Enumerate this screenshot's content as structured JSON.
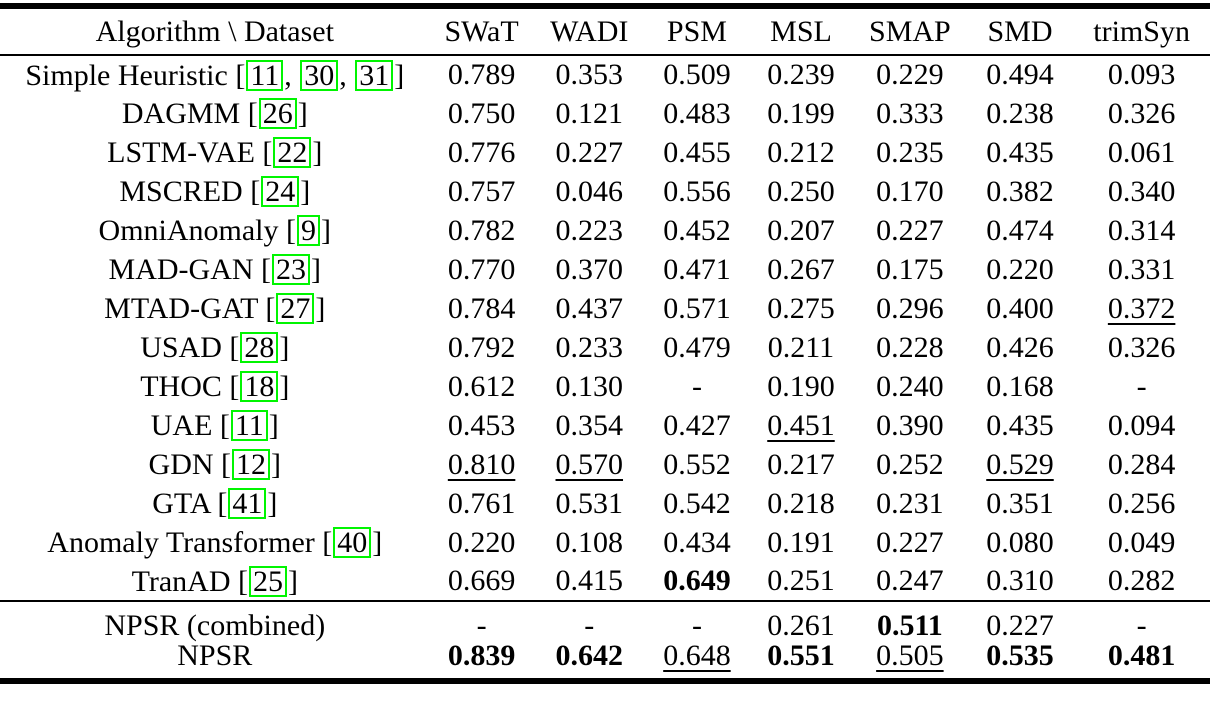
{
  "colors": {
    "citation_box": "#00f500",
    "rule": "#000000",
    "background": "#ffffff",
    "text": "#000000"
  },
  "table": {
    "header": {
      "algorithm_label": "Algorithm \\ Dataset",
      "datasets": [
        "SWaT",
        "WADI",
        "PSM",
        "MSL",
        "SMAP",
        "SMD",
        "trimSyn"
      ]
    },
    "rows": [
      {
        "name": "Simple Heuristic",
        "citations": [
          "11",
          "30",
          "31"
        ],
        "values": [
          {
            "value": "0.789",
            "style": "normal"
          },
          {
            "value": "0.353",
            "style": "normal"
          },
          {
            "value": "0.509",
            "style": "normal"
          },
          {
            "value": "0.239",
            "style": "normal"
          },
          {
            "value": "0.229",
            "style": "normal"
          },
          {
            "value": "0.494",
            "style": "normal"
          },
          {
            "value": "0.093",
            "style": "normal"
          }
        ]
      },
      {
        "name": "DAGMM",
        "citations": [
          "26"
        ],
        "values": [
          {
            "value": "0.750",
            "style": "normal"
          },
          {
            "value": "0.121",
            "style": "normal"
          },
          {
            "value": "0.483",
            "style": "normal"
          },
          {
            "value": "0.199",
            "style": "normal"
          },
          {
            "value": "0.333",
            "style": "normal"
          },
          {
            "value": "0.238",
            "style": "normal"
          },
          {
            "value": "0.326",
            "style": "normal"
          }
        ]
      },
      {
        "name": "LSTM-VAE",
        "citations": [
          "22"
        ],
        "values": [
          {
            "value": "0.776",
            "style": "normal"
          },
          {
            "value": "0.227",
            "style": "normal"
          },
          {
            "value": "0.455",
            "style": "normal"
          },
          {
            "value": "0.212",
            "style": "normal"
          },
          {
            "value": "0.235",
            "style": "normal"
          },
          {
            "value": "0.435",
            "style": "normal"
          },
          {
            "value": "0.061",
            "style": "normal"
          }
        ]
      },
      {
        "name": "MSCRED",
        "citations": [
          "24"
        ],
        "values": [
          {
            "value": "0.757",
            "style": "normal"
          },
          {
            "value": "0.046",
            "style": "normal"
          },
          {
            "value": "0.556",
            "style": "normal"
          },
          {
            "value": "0.250",
            "style": "normal"
          },
          {
            "value": "0.170",
            "style": "normal"
          },
          {
            "value": "0.382",
            "style": "normal"
          },
          {
            "value": "0.340",
            "style": "normal"
          }
        ]
      },
      {
        "name": "OmniAnomaly",
        "citations": [
          "9"
        ],
        "values": [
          {
            "value": "0.782",
            "style": "normal"
          },
          {
            "value": "0.223",
            "style": "normal"
          },
          {
            "value": "0.452",
            "style": "normal"
          },
          {
            "value": "0.207",
            "style": "normal"
          },
          {
            "value": "0.227",
            "style": "normal"
          },
          {
            "value": "0.474",
            "style": "normal"
          },
          {
            "value": "0.314",
            "style": "normal"
          }
        ]
      },
      {
        "name": "MAD-GAN",
        "citations": [
          "23"
        ],
        "values": [
          {
            "value": "0.770",
            "style": "normal"
          },
          {
            "value": "0.370",
            "style": "normal"
          },
          {
            "value": "0.471",
            "style": "normal"
          },
          {
            "value": "0.267",
            "style": "normal"
          },
          {
            "value": "0.175",
            "style": "normal"
          },
          {
            "value": "0.220",
            "style": "normal"
          },
          {
            "value": "0.331",
            "style": "normal"
          }
        ]
      },
      {
        "name": "MTAD-GAT",
        "citations": [
          "27"
        ],
        "values": [
          {
            "value": "0.784",
            "style": "normal"
          },
          {
            "value": "0.437",
            "style": "normal"
          },
          {
            "value": "0.571",
            "style": "normal"
          },
          {
            "value": "0.275",
            "style": "normal"
          },
          {
            "value": "0.296",
            "style": "normal"
          },
          {
            "value": "0.400",
            "style": "normal"
          },
          {
            "value": "0.372",
            "style": "underline"
          }
        ]
      },
      {
        "name": "USAD",
        "citations": [
          "28"
        ],
        "values": [
          {
            "value": "0.792",
            "style": "normal"
          },
          {
            "value": "0.233",
            "style": "normal"
          },
          {
            "value": "0.479",
            "style": "normal"
          },
          {
            "value": "0.211",
            "style": "normal"
          },
          {
            "value": "0.228",
            "style": "normal"
          },
          {
            "value": "0.426",
            "style": "normal"
          },
          {
            "value": "0.326",
            "style": "normal"
          }
        ]
      },
      {
        "name": "THOC",
        "citations": [
          "18"
        ],
        "values": [
          {
            "value": "0.612",
            "style": "normal"
          },
          {
            "value": "0.130",
            "style": "normal"
          },
          {
            "value": "-",
            "style": "normal"
          },
          {
            "value": "0.190",
            "style": "normal"
          },
          {
            "value": "0.240",
            "style": "normal"
          },
          {
            "value": "0.168",
            "style": "normal"
          },
          {
            "value": "-",
            "style": "normal"
          }
        ]
      },
      {
        "name": "UAE",
        "citations": [
          "11"
        ],
        "values": [
          {
            "value": "0.453",
            "style": "normal"
          },
          {
            "value": "0.354",
            "style": "normal"
          },
          {
            "value": "0.427",
            "style": "normal"
          },
          {
            "value": "0.451",
            "style": "underline"
          },
          {
            "value": "0.390",
            "style": "normal"
          },
          {
            "value": "0.435",
            "style": "normal"
          },
          {
            "value": "0.094",
            "style": "normal"
          }
        ]
      },
      {
        "name": "GDN",
        "citations": [
          "12"
        ],
        "values": [
          {
            "value": "0.810",
            "style": "underline"
          },
          {
            "value": "0.570",
            "style": "underline"
          },
          {
            "value": "0.552",
            "style": "normal"
          },
          {
            "value": "0.217",
            "style": "normal"
          },
          {
            "value": "0.252",
            "style": "normal"
          },
          {
            "value": "0.529",
            "style": "underline"
          },
          {
            "value": "0.284",
            "style": "normal"
          }
        ]
      },
      {
        "name": "GTA",
        "citations": [
          "41"
        ],
        "values": [
          {
            "value": "0.761",
            "style": "normal"
          },
          {
            "value": "0.531",
            "style": "normal"
          },
          {
            "value": "0.542",
            "style": "normal"
          },
          {
            "value": "0.218",
            "style": "normal"
          },
          {
            "value": "0.231",
            "style": "normal"
          },
          {
            "value": "0.351",
            "style": "normal"
          },
          {
            "value": "0.256",
            "style": "normal"
          }
        ]
      },
      {
        "name": "Anomaly Transformer",
        "citations": [
          "40"
        ],
        "values": [
          {
            "value": "0.220",
            "style": "normal"
          },
          {
            "value": "0.108",
            "style": "normal"
          },
          {
            "value": "0.434",
            "style": "normal"
          },
          {
            "value": "0.191",
            "style": "normal"
          },
          {
            "value": "0.227",
            "style": "normal"
          },
          {
            "value": "0.080",
            "style": "normal"
          },
          {
            "value": "0.049",
            "style": "normal"
          }
        ]
      },
      {
        "name": "TranAD",
        "citations": [
          "25"
        ],
        "values": [
          {
            "value": "0.669",
            "style": "normal"
          },
          {
            "value": "0.415",
            "style": "normal"
          },
          {
            "value": "0.649",
            "style": "bold"
          },
          {
            "value": "0.251",
            "style": "normal"
          },
          {
            "value": "0.247",
            "style": "normal"
          },
          {
            "value": "0.310",
            "style": "normal"
          },
          {
            "value": "0.282",
            "style": "normal"
          }
        ]
      }
    ],
    "footer_rows": [
      {
        "name": "NPSR (combined)",
        "citations": [],
        "values": [
          {
            "value": "-",
            "style": "normal"
          },
          {
            "value": "-",
            "style": "normal"
          },
          {
            "value": "-",
            "style": "normal"
          },
          {
            "value": "0.261",
            "style": "normal"
          },
          {
            "value": "0.511",
            "style": "bold"
          },
          {
            "value": "0.227",
            "style": "normal"
          },
          {
            "value": "-",
            "style": "normal"
          }
        ]
      },
      {
        "name": "NPSR",
        "citations": [],
        "values": [
          {
            "value": "0.839",
            "style": "bold"
          },
          {
            "value": "0.642",
            "style": "bold"
          },
          {
            "value": "0.648",
            "style": "underline"
          },
          {
            "value": "0.551",
            "style": "bold"
          },
          {
            "value": "0.505",
            "style": "underline"
          },
          {
            "value": "0.535",
            "style": "bold"
          },
          {
            "value": "0.481",
            "style": "bold"
          }
        ]
      }
    ]
  }
}
